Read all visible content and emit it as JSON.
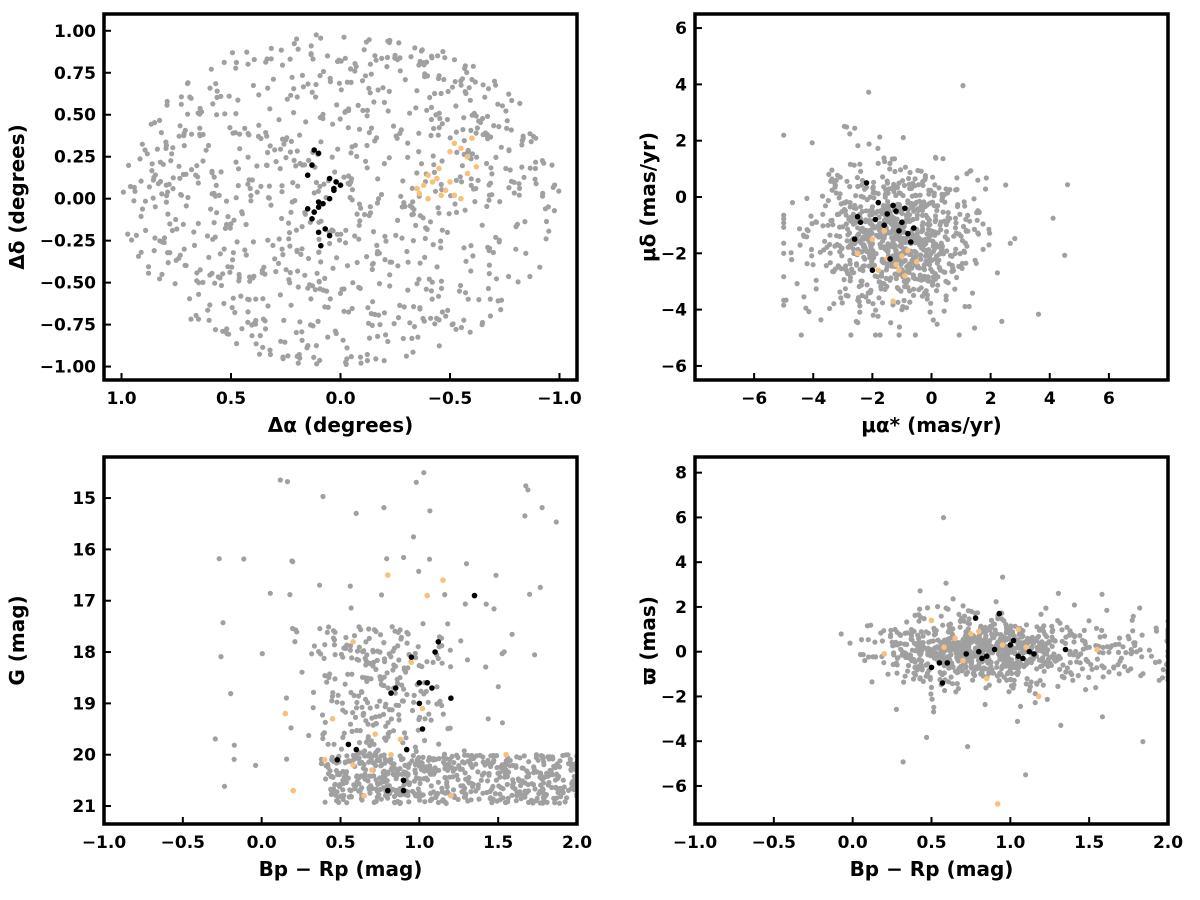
{
  "chart_data": [
    {
      "type": "scatter",
      "xlabel": "Δα (degrees)",
      "ylabel": "Δδ (degrees)",
      "xlim": [
        1.08,
        -1.08
      ],
      "ylim": [
        -1.08,
        1.1
      ],
      "xticks": [
        1.0,
        0.5,
        0.0,
        -0.5,
        -1.0
      ],
      "xticklabels": [
        "1.0",
        "0.5",
        "0.0",
        "−0.5",
        "−1.0"
      ],
      "yticks": [
        1.0,
        0.75,
        0.5,
        0.25,
        0.0,
        -0.25,
        -0.5,
        -0.75,
        -1.0
      ],
      "yticklabels": [
        "1.00",
        "0.75",
        "0.50",
        "0.25",
        "0.00",
        "−0.25",
        "−0.50",
        "−0.75",
        "−1.00"
      ],
      "background_field": {
        "color": "#a0a0a0",
        "count": 900,
        "distribution": "uniform within circle of radius 1.0 deg"
      },
      "series": [
        {
          "color": "#f8c07c",
          "x": [
            -0.52,
            -0.55,
            -0.5,
            -0.58,
            -0.45,
            -0.4,
            -0.42,
            -0.38,
            -0.48,
            -0.52,
            -0.55,
            -0.62,
            -0.35,
            -0.44,
            -0.46,
            -0.5,
            -0.4,
            -0.36,
            -0.58,
            -0.6
          ],
          "y": [
            0.33,
            0.3,
            0.28,
            0.25,
            0.18,
            0.14,
            0.1,
            0.08,
            0.05,
            0.02,
            0.0,
            0.19,
            0.06,
            0.12,
            0.02,
            0.1,
            0.0,
            0.03,
            0.15,
            0.36
          ]
        },
        {
          "color": "#000000",
          "x": [
            0.12,
            0.1,
            0.13,
            0.15,
            0.05,
            0.02,
            0.0,
            0.03,
            0.05,
            0.08,
            0.1,
            0.12,
            0.13,
            0.07,
            0.1,
            0.05,
            0.15,
            0.03,
            0.09,
            0.1
          ],
          "y": [
            0.29,
            0.27,
            0.2,
            0.14,
            0.12,
            0.1,
            0.08,
            0.06,
            0.0,
            -0.03,
            -0.05,
            -0.08,
            -0.12,
            -0.18,
            -0.2,
            -0.22,
            -0.06,
            0.05,
            -0.28,
            -0.02
          ]
        }
      ]
    },
    {
      "type": "scatter",
      "xlabel": "μα* (mas/yr)",
      "ylabel": "μδ (mas/yr)",
      "xlim": [
        -8,
        8
      ],
      "ylim": [
        -6.5,
        6.5
      ],
      "xticks": [
        -6,
        -4,
        -2,
        0,
        2,
        4,
        6
      ],
      "xticklabels": [
        "−6",
        "−4",
        "−2",
        "0",
        "2",
        "4",
        "6"
      ],
      "yticks": [
        -6,
        -4,
        -2,
        0,
        2,
        4,
        6
      ],
      "yticklabels": [
        "−6",
        "−4",
        "−2",
        "0",
        "2",
        "4",
        "6"
      ],
      "background_field": {
        "color": "#a0a0a0",
        "count": 900,
        "distribution": "clump centred near (-1.5, -1.5), spread ~1.5"
      },
      "series": [
        {
          "color": "#f8c07c",
          "x": [
            -1.5,
            -1.2,
            -1.0,
            -0.8,
            -0.5,
            -1.8,
            -2.0,
            -1.3,
            -0.9,
            -2.5,
            -1.6,
            -1.1
          ],
          "y": [
            -2.2,
            -2.4,
            -2.1,
            -1.9,
            -2.3,
            -2.6,
            -1.5,
            -3.7,
            -2.8,
            -2.0,
            -1.2,
            -2.6
          ]
        },
        {
          "color": "#000000",
          "x": [
            -2.2,
            -1.8,
            -1.5,
            -1.2,
            -1.0,
            -0.8,
            -2.5,
            -2.6,
            -1.4,
            -0.7,
            -1.9,
            -2.0,
            -1.6,
            -1.1,
            -0.9,
            -2.4,
            -1.3,
            -0.6
          ],
          "y": [
            0.5,
            -0.2,
            -0.6,
            -0.5,
            -0.9,
            -1.3,
            -0.7,
            -1.5,
            -2.2,
            -1.6,
            -0.8,
            -2.6,
            -1.0,
            -1.2,
            -0.4,
            -0.9,
            -0.3,
            -1.1
          ]
        }
      ]
    },
    {
      "type": "scatter",
      "xlabel": "Bp − Rp (mag)",
      "ylabel": "G (mag)",
      "xlim": [
        -1.0,
        2.0
      ],
      "ylim": [
        21.35,
        14.2
      ],
      "xticks": [
        -1.0,
        -0.5,
        0.0,
        0.5,
        1.0,
        1.5,
        2.0
      ],
      "xticklabels": [
        "−1.0",
        "−0.5",
        "0.0",
        "0.5",
        "1.0",
        "1.5",
        "2.0"
      ],
      "yticks": [
        15,
        16,
        17,
        18,
        19,
        20,
        21
      ],
      "yticklabels": [
        "15",
        "16",
        "17",
        "18",
        "19",
        "20",
        "21"
      ],
      "background_field": {
        "color": "#a0a0a0",
        "count": 900,
        "distribution": "dense band at G 20-21, colour 0.3-1.5, tail to bright mags"
      },
      "series": [
        {
          "color": "#f8c07c",
          "x": [
            0.15,
            0.2,
            0.4,
            0.45,
            0.58,
            0.65,
            0.7,
            0.8,
            0.82,
            0.88,
            0.95,
            1.02,
            1.05,
            1.15,
            1.2,
            1.55,
            0.58,
            0.72
          ],
          "y": [
            19.2,
            20.7,
            20.1,
            19.3,
            17.8,
            20.8,
            20.3,
            16.5,
            20.0,
            19.7,
            18.2,
            19.1,
            16.9,
            16.6,
            20.8,
            20.0,
            20.2,
            19.6
          ]
        },
        {
          "color": "#000000",
          "x": [
            0.48,
            0.55,
            0.6,
            0.8,
            0.82,
            0.85,
            0.9,
            0.92,
            1.0,
            1.02,
            1.05,
            1.08,
            1.1,
            1.12,
            1.2,
            1.35,
            0.9,
            0.95,
            1.0
          ],
          "y": [
            20.1,
            19.8,
            19.9,
            20.7,
            18.8,
            18.7,
            20.5,
            19.9,
            18.6,
            19.5,
            18.6,
            18.7,
            18.0,
            17.8,
            18.9,
            16.9,
            20.7,
            18.1,
            19.0
          ]
        }
      ]
    },
    {
      "type": "scatter",
      "xlabel": "Bp − Rp (mag)",
      "ylabel": "ϖ (mas)",
      "xlim": [
        -1.0,
        2.0
      ],
      "ylim": [
        -7.7,
        8.7
      ],
      "xticks": [
        -1.0,
        -0.5,
        0.0,
        0.5,
        1.0,
        1.5,
        2.0
      ],
      "xticklabels": [
        "−1.0",
        "−0.5",
        "0.0",
        "0.5",
        "1.0",
        "1.5",
        "2.0"
      ],
      "yticks": [
        -6,
        -4,
        -2,
        0,
        2,
        4,
        6,
        8
      ],
      "yticklabels": [
        "−6",
        "−4",
        "−2",
        "0",
        "2",
        "4",
        "6",
        "8"
      ],
      "background_field": {
        "color": "#a0a0a0",
        "count": 900,
        "distribution": "concentrated near parallax 0, colour 0.2-2.0"
      },
      "series": [
        {
          "color": "#f8c07c",
          "x": [
            0.2,
            0.5,
            0.58,
            0.65,
            0.7,
            0.75,
            0.8,
            0.85,
            0.95,
            1.05,
            1.1,
            1.18,
            1.55,
            0.92
          ],
          "y": [
            -0.1,
            1.4,
            0.2,
            0.6,
            -0.4,
            0.8,
            0.9,
            -1.2,
            0.3,
            1.0,
            0.2,
            -2.0,
            0.1,
            -6.8
          ]
        },
        {
          "color": "#000000",
          "x": [
            0.5,
            0.55,
            0.57,
            0.72,
            0.78,
            0.8,
            0.82,
            0.9,
            0.93,
            1.0,
            1.02,
            1.05,
            1.08,
            1.12,
            1.15,
            1.35,
            0.6,
            0.85
          ],
          "y": [
            -0.7,
            -0.5,
            -1.4,
            -0.1,
            1.5,
            0.0,
            -0.3,
            0.1,
            1.7,
            0.3,
            0.5,
            -0.2,
            -0.3,
            0.0,
            -0.1,
            0.1,
            -0.5,
            -0.2
          ]
        }
      ]
    }
  ]
}
